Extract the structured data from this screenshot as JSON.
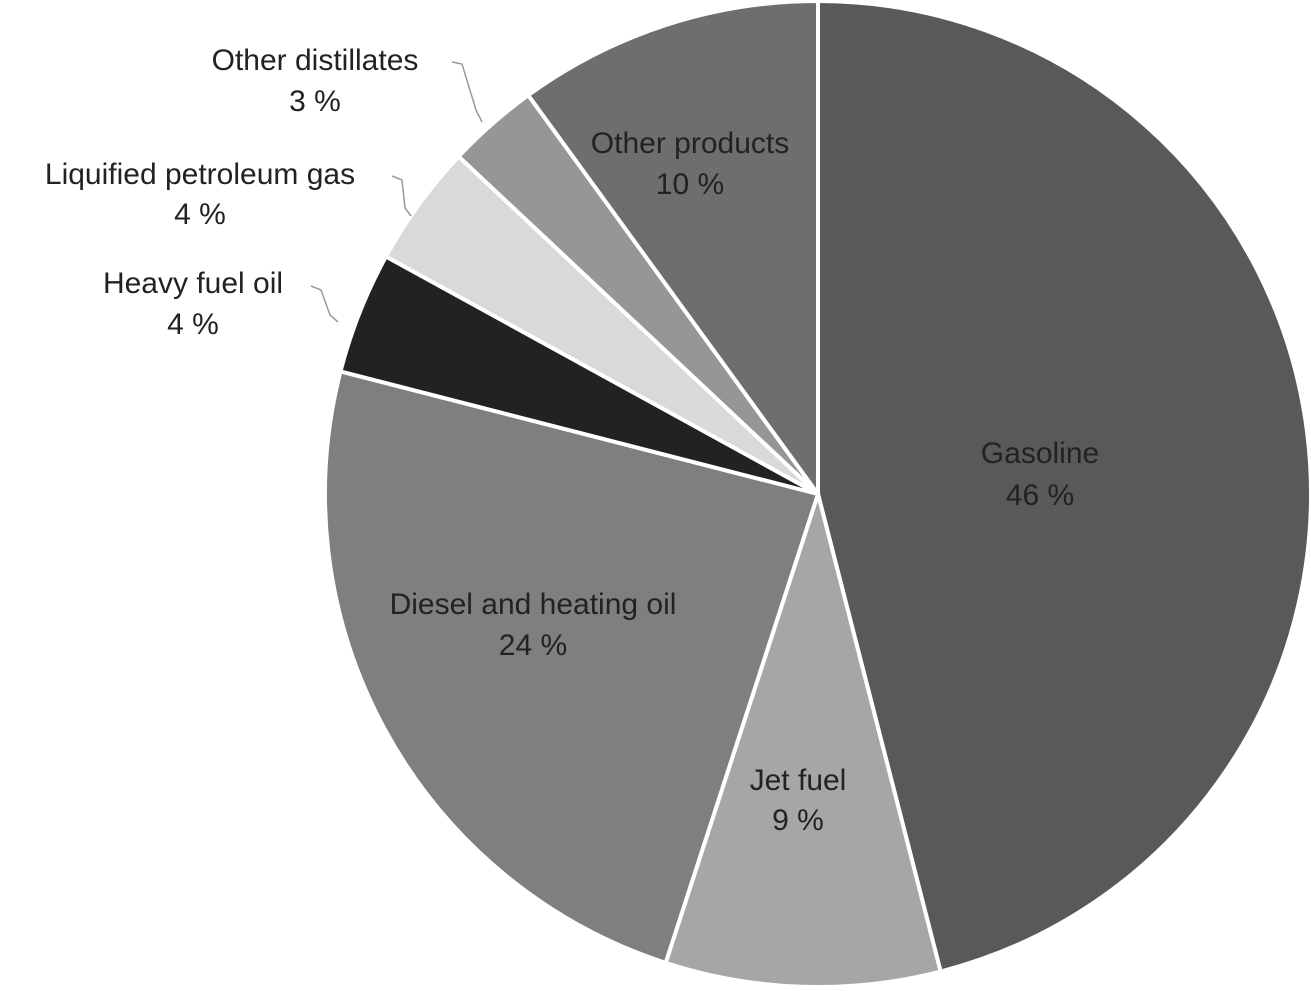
{
  "chart_data": {
    "type": "pie",
    "start": "12 o'clock",
    "direction": "clockwise",
    "slices": [
      {
        "name": "Gasoline",
        "value_label": "46 %",
        "value": 46,
        "color": "#595959",
        "label_color": "#222222"
      },
      {
        "name": "Jet fuel",
        "value_label": "9 %",
        "value": 9,
        "color": "#a6a6a6",
        "label_color": "#222222"
      },
      {
        "name": "Diesel and heating oil",
        "value_label": "24 %",
        "value": 24,
        "color": "#7f7f7f",
        "label_color": "#222222"
      },
      {
        "name": "Heavy fuel oil",
        "value_label": "4 %",
        "value": 4,
        "color": "#222222",
        "label_color": "#222222"
      },
      {
        "name": "Liquified petroleum gas",
        "value_label": "4 %",
        "value": 4,
        "color": "#d9d9d9",
        "label_color": "#222222"
      },
      {
        "name": "Other distillates",
        "value_label": "3 %",
        "value": 3,
        "color": "#969696",
        "label_color": "#222222"
      },
      {
        "name": "Other products",
        "value_label": "10 %",
        "value": 10,
        "color": "#6e6e6e",
        "label_color": "#222222"
      }
    ]
  }
}
